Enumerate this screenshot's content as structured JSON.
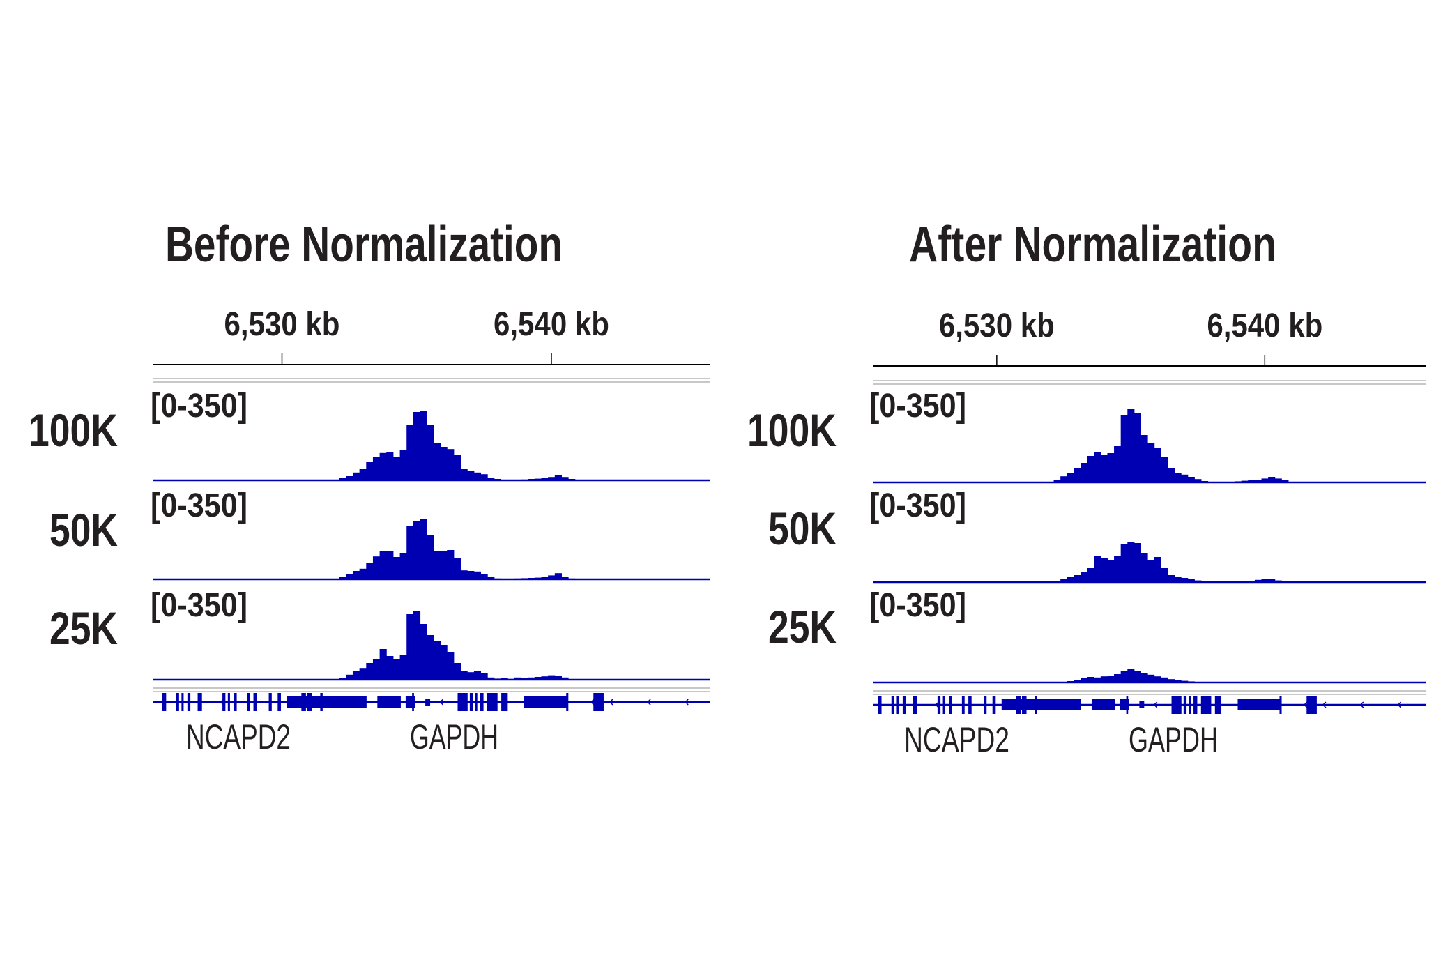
{
  "colors": {
    "track": "#0000b3",
    "text": "#231f20",
    "ruler": "#000000",
    "separator": "#c8c8c8"
  },
  "chart_data": [
    {
      "type": "area",
      "title": "Before Normalization",
      "x_ticks": [
        {
          "value": 6530,
          "label": "6,530 kb"
        },
        {
          "value": 6540,
          "label": "6,540 kb"
        }
      ],
      "xlim_kb": [
        6525.2,
        6545.9
      ],
      "x_kb": [
        6532.0,
        6532.25,
        6532.5,
        6532.75,
        6533.0,
        6533.25,
        6533.5,
        6533.75,
        6534.0,
        6534.25,
        6534.5,
        6534.75,
        6535.0,
        6535.25,
        6535.5,
        6535.75,
        6536.0,
        6536.25,
        6536.5,
        6536.75,
        6537.0,
        6537.25,
        6537.5,
        6537.75,
        6538.0,
        6538.25,
        6538.5,
        6538.75,
        6539.0,
        6539.25,
        6539.5,
        6539.75,
        6540.0,
        6540.25,
        6540.5,
        6540.75,
        6541.0
      ],
      "series": [
        {
          "name": "100K",
          "range_label": "[0-350]",
          "ylim": [
            0,
            350
          ],
          "values": [
            0,
            8,
            15,
            28,
            40,
            65,
            85,
            98,
            100,
            85,
            110,
            200,
            245,
            250,
            200,
            135,
            120,
            112,
            90,
            40,
            35,
            28,
            22,
            10,
            5,
            2,
            0,
            0,
            3,
            5,
            6,
            8,
            12,
            20,
            12,
            5,
            0
          ]
        },
        {
          "name": "50K",
          "range_label": "[0-350]",
          "ylim": [
            0,
            350
          ],
          "values": [
            0,
            10,
            18,
            30,
            38,
            60,
            82,
            100,
            102,
            80,
            95,
            190,
            210,
            215,
            160,
            100,
            100,
            105,
            75,
            32,
            30,
            28,
            20,
            8,
            3,
            2,
            1,
            3,
            4,
            5,
            6,
            8,
            14,
            22,
            10,
            3,
            0
          ]
        },
        {
          "name": "25K",
          "range_label": "[0-350]",
          "ylim": [
            0,
            350
          ],
          "values": [
            0,
            5,
            18,
            30,
            42,
            60,
            75,
            110,
            85,
            75,
            90,
            235,
            245,
            200,
            160,
            140,
            125,
            100,
            60,
            30,
            27,
            30,
            25,
            8,
            4,
            6,
            3,
            8,
            6,
            8,
            10,
            12,
            16,
            14,
            8,
            2,
            0
          ]
        }
      ],
      "genes": [
        {
          "label": "NCAPD2"
        },
        {
          "label": "GAPDH"
        }
      ]
    },
    {
      "type": "area",
      "title": "After Normalization",
      "x_ticks": [
        {
          "value": 6530,
          "label": "6,530 kb"
        },
        {
          "value": 6540,
          "label": "6,540 kb"
        }
      ],
      "xlim_kb": [
        6525.4,
        6546.0
      ],
      "x_kb": [
        6532.0,
        6532.25,
        6532.5,
        6532.75,
        6533.0,
        6533.25,
        6533.5,
        6533.75,
        6534.0,
        6534.25,
        6534.5,
        6534.75,
        6535.0,
        6535.25,
        6535.5,
        6535.75,
        6536.0,
        6536.25,
        6536.5,
        6536.75,
        6537.0,
        6537.25,
        6537.5,
        6537.75,
        6538.0,
        6538.25,
        6538.5,
        6538.75,
        6539.0,
        6539.25,
        6539.5,
        6539.75,
        6540.0,
        6540.25,
        6540.5,
        6540.75,
        6541.0
      ],
      "series": [
        {
          "name": "100K",
          "range_label": "[0-350]",
          "ylim": [
            0,
            350
          ],
          "values": [
            0,
            10,
            22,
            35,
            50,
            70,
            95,
            110,
            100,
            105,
            130,
            240,
            265,
            250,
            170,
            140,
            125,
            90,
            50,
            35,
            28,
            20,
            12,
            5,
            0,
            0,
            0,
            0,
            4,
            6,
            8,
            10,
            14,
            20,
            14,
            8,
            0
          ]
        },
        {
          "name": "50K",
          "range_label": "[0-350]",
          "ylim": [
            0,
            350
          ],
          "values": [
            0,
            5,
            12,
            18,
            25,
            35,
            50,
            95,
            85,
            80,
            95,
            135,
            145,
            140,
            105,
            80,
            90,
            50,
            25,
            20,
            15,
            10,
            6,
            3,
            2,
            1,
            3,
            2,
            4,
            4,
            5,
            8,
            10,
            12,
            6,
            2,
            0
          ]
        },
        {
          "name": "25K",
          "range_label": "[0-350]",
          "ylim": [
            0,
            350
          ],
          "values": [
            0,
            0,
            2,
            5,
            10,
            15,
            20,
            18,
            22,
            25,
            30,
            42,
            50,
            40,
            35,
            28,
            22,
            18,
            12,
            8,
            6,
            4,
            0,
            0,
            0,
            0,
            0,
            0,
            0,
            0,
            0,
            0,
            0,
            0,
            0,
            0,
            0
          ]
        }
      ],
      "genes": [
        {
          "label": "NCAPD2"
        },
        {
          "label": "GAPDH"
        }
      ]
    }
  ],
  "gene_track": {
    "exons_kb": [
      [
        6525.56,
        6525.7,
        "tall"
      ],
      [
        6526.07,
        6526.18,
        "tall"
      ],
      [
        6526.27,
        6526.35,
        "tall"
      ],
      [
        6526.49,
        6526.6,
        "tall"
      ],
      [
        6526.87,
        6527.03,
        "tall"
      ],
      [
        6527.79,
        6527.9,
        "tall"
      ],
      [
        6527.99,
        6528.07,
        "tall"
      ],
      [
        6528.21,
        6528.32,
        "tall"
      ],
      [
        6528.7,
        6528.8,
        "tall"
      ],
      [
        6528.94,
        6529.06,
        "tall"
      ],
      [
        6529.51,
        6529.62,
        "tall"
      ],
      [
        6529.84,
        6529.96,
        "tall"
      ],
      [
        6530.18,
        6533.14,
        "mid"
      ],
      [
        6530.72,
        6530.89,
        "tall"
      ],
      [
        6530.94,
        6531.11,
        "tall"
      ],
      [
        6531.42,
        6531.51,
        "tall"
      ],
      [
        6533.54,
        6534.41,
        "mid"
      ],
      [
        6534.59,
        6534.93,
        "mid"
      ],
      [
        6534.83,
        6534.9,
        "tall"
      ],
      [
        6535.32,
        6535.5,
        "small"
      ],
      [
        6536.52,
        6536.89,
        "tall"
      ],
      [
        6536.97,
        6537.08,
        "tall"
      ],
      [
        6537.17,
        6537.25,
        "tall"
      ],
      [
        6537.34,
        6537.48,
        "tall"
      ],
      [
        6537.62,
        6538.0,
        "tall"
      ],
      [
        6538.14,
        6538.38,
        "tall"
      ],
      [
        6538.99,
        6540.58,
        "mid"
      ],
      [
        6540.55,
        6540.63,
        "tall"
      ],
      [
        6541.56,
        6541.94,
        "tall"
      ]
    ],
    "strand_marks_kb": [
      6527.75,
      6531.25,
      6532.7,
      6535.9,
      6541.5,
      6542.2,
      6543.6,
      6545.0
    ]
  }
}
